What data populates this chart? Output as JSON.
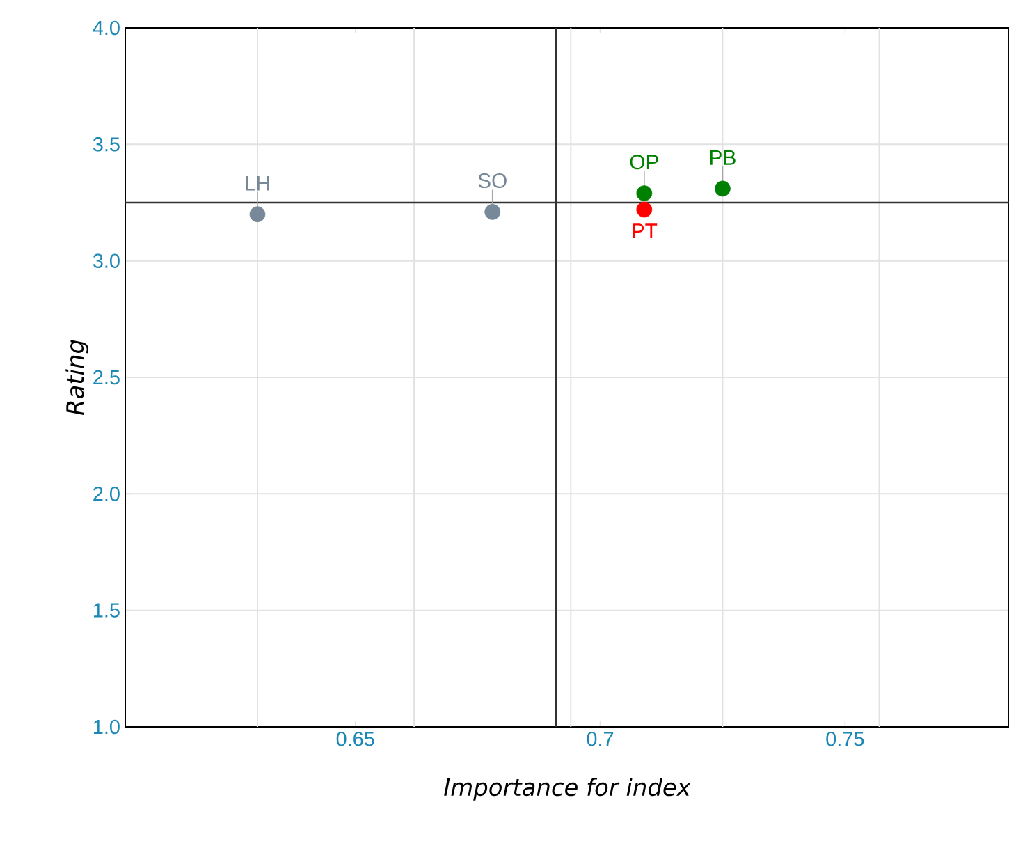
{
  "chart_data": {
    "type": "scatter",
    "xlabel": "Importance for index",
    "ylabel": "Rating",
    "x": [
      0.63,
      0.678,
      0.709,
      0.709,
      0.725
    ],
    "values": [
      3.2,
      3.21,
      3.29,
      3.22,
      3.31
    ],
    "colors": [
      "#778899",
      "#778899",
      "#008000",
      "#ff0000",
      "#008000"
    ],
    "marker": "circle",
    "xlim": [
      0.603,
      0.7835
    ],
    "ylim": [
      1.0,
      4.0
    ],
    "xticks": [
      {
        "value": 0.63,
        "label": null
      },
      0.65,
      {
        "value": 0.662,
        "label": null
      },
      {
        "value": 0.694,
        "label": null
      },
      0.7,
      {
        "value": 0.725,
        "label": null
      },
      0.75,
      {
        "value": 0.757,
        "label": null
      }
    ],
    "yticks": [
      {
        "value": 1.0,
        "label": "1.0"
      },
      {
        "value": 1.5,
        "label": "1.5"
      },
      {
        "value": 2.0,
        "label": "2.0"
      },
      {
        "value": 2.5,
        "label": "2.5"
      },
      {
        "value": 3.0,
        "label": "3.0"
      },
      {
        "value": 3.5,
        "label": "3.5"
      },
      {
        "value": 4.0,
        "label": "4.0"
      }
    ],
    "grid": true,
    "ref_lines": [
      {
        "axis": "x",
        "value": 0.691,
        "color": "#333333"
      },
      {
        "axis": "y",
        "value": 3.25,
        "color": "#333333"
      }
    ],
    "annotations": [
      {
        "text": "LH",
        "x": 0.63,
        "y": 3.2
      },
      {
        "text": "SO",
        "x": 0.678,
        "y": 3.21
      },
      {
        "text": "OP",
        "x": 0.709,
        "y": 3.29
      },
      {
        "text": "PT",
        "x": 0.709,
        "y": 3.22
      },
      {
        "text": "PB",
        "x": 0.725,
        "y": 3.31
      }
    ]
  }
}
